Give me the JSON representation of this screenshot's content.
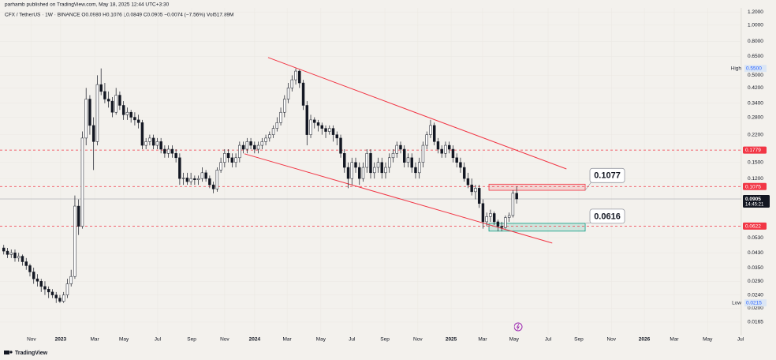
{
  "header": {
    "author_line": "parhamb published on TradingView.com, May 18, 2025 12:44 UTC+3:30",
    "symbol_line": "CFX / TetherUS · 1W · BINANCE  O0.0980  H0.1076  L0.0849  C0.0905  −0.0074 (−7.56%)  Vol517.89M"
  },
  "footer": {
    "brand": "TradingView"
  },
  "chart_data": {
    "type": "candlestick",
    "log_scale": true,
    "grid": true,
    "up_color": "#ffffff",
    "down_color": "#131722",
    "wick_color": "#131722",
    "xlim": [
      -1,
      197
    ],
    "ylim": [
      0.0137,
      1.27
    ],
    "xticks": [
      {
        "value": 7.4,
        "label": "Nov"
      },
      {
        "value": 15.2,
        "label": "2023"
      },
      {
        "value": 24.3,
        "label": "Mar"
      },
      {
        "value": 32.1,
        "label": "May"
      },
      {
        "value": 41.1,
        "label": "Jul"
      },
      {
        "value": 50.2,
        "label": "Sep"
      },
      {
        "value": 59,
        "label": "Nov"
      },
      {
        "value": 67,
        "label": "2024"
      },
      {
        "value": 75.7,
        "label": "Mar"
      },
      {
        "value": 84.7,
        "label": "May"
      },
      {
        "value": 93,
        "label": "Jul"
      },
      {
        "value": 101.8,
        "label": "Sep"
      },
      {
        "value": 110.6,
        "label": "Nov"
      },
      {
        "value": 119.5,
        "label": "2025"
      },
      {
        "value": 127.9,
        "label": "Mar"
      },
      {
        "value": 136.3,
        "label": "May"
      },
      {
        "value": 145.4,
        "label": "Jul"
      },
      {
        "value": 153.6,
        "label": "Sep"
      },
      {
        "value": 162.3,
        "label": "Nov"
      },
      {
        "value": 171.1,
        "label": "2026"
      },
      {
        "value": 179.1,
        "label": "Mar"
      },
      {
        "value": 188,
        "label": "May"
      },
      {
        "value": 196.8,
        "label": "Jul"
      }
    ],
    "yticks": [
      {
        "value": 1.2,
        "label": "1.2000"
      },
      {
        "value": 1.0,
        "label": "1.0000"
      },
      {
        "value": 0.8,
        "label": "0.8000"
      },
      {
        "value": 0.65,
        "label": "0.6500"
      },
      {
        "value": 0.5,
        "label": "0.5000"
      },
      {
        "value": 0.42,
        "label": "0.4200"
      },
      {
        "value": 0.34,
        "label": "0.3400"
      },
      {
        "value": 0.28,
        "label": "0.2800"
      },
      {
        "value": 0.22,
        "label": "0.2200"
      },
      {
        "value": 0.15,
        "label": "0.1500"
      },
      {
        "value": 0.12,
        "label": "0.1200"
      },
      {
        "value": 0.053,
        "label": "0.0530"
      },
      {
        "value": 0.043,
        "label": "0.0430"
      },
      {
        "value": 0.035,
        "label": "0.0350"
      },
      {
        "value": 0.029,
        "label": "0.0290"
      },
      {
        "value": 0.024,
        "label": "0.0240"
      },
      {
        "value": 0.02,
        "label": "0.0200"
      },
      {
        "value": 0.0165,
        "label": "0.0165"
      }
    ],
    "ohlc": [
      [
        0.046,
        0.048,
        0.042,
        0.044
      ],
      [
        0.044,
        0.046,
        0.04,
        0.042
      ],
      [
        0.042,
        0.045,
        0.04,
        0.043
      ],
      [
        0.043,
        0.045,
        0.038,
        0.04
      ],
      [
        0.04,
        0.043,
        0.038,
        0.041
      ],
      [
        0.041,
        0.042,
        0.036,
        0.038
      ],
      [
        0.038,
        0.04,
        0.034,
        0.036
      ],
      [
        0.036,
        0.037,
        0.031,
        0.033
      ],
      [
        0.033,
        0.035,
        0.028,
        0.03
      ],
      [
        0.03,
        0.032,
        0.027,
        0.029
      ],
      [
        0.029,
        0.03,
        0.025,
        0.027
      ],
      [
        0.027,
        0.029,
        0.024,
        0.026
      ],
      [
        0.026,
        0.027,
        0.023,
        0.025
      ],
      [
        0.025,
        0.026,
        0.023,
        0.024
      ],
      [
        0.024,
        0.025,
        0.0215,
        0.023
      ],
      [
        0.023,
        0.024,
        0.0215,
        0.022
      ],
      [
        0.022,
        0.025,
        0.0215,
        0.024
      ],
      [
        0.024,
        0.03,
        0.023,
        0.028
      ],
      [
        0.028,
        0.034,
        0.027,
        0.031
      ],
      [
        0.031,
        0.095,
        0.03,
        0.082
      ],
      [
        0.082,
        0.09,
        0.055,
        0.062
      ],
      [
        0.062,
        0.23,
        0.06,
        0.21
      ],
      [
        0.21,
        0.42,
        0.19,
        0.36
      ],
      [
        0.36,
        0.38,
        0.22,
        0.25
      ],
      [
        0.25,
        0.28,
        0.135,
        0.2
      ],
      [
        0.2,
        0.5,
        0.19,
        0.44
      ],
      [
        0.44,
        0.55,
        0.38,
        0.4
      ],
      [
        0.4,
        0.45,
        0.34,
        0.36
      ],
      [
        0.36,
        0.4,
        0.32,
        0.35
      ],
      [
        0.35,
        0.37,
        0.28,
        0.3
      ],
      [
        0.3,
        0.42,
        0.29,
        0.38
      ],
      [
        0.38,
        0.4,
        0.31,
        0.33
      ],
      [
        0.33,
        0.35,
        0.27,
        0.29
      ],
      [
        0.29,
        0.32,
        0.27,
        0.3
      ],
      [
        0.3,
        0.31,
        0.26,
        0.28
      ],
      [
        0.28,
        0.3,
        0.25,
        0.27
      ],
      [
        0.27,
        0.29,
        0.24,
        0.26
      ],
      [
        0.26,
        0.27,
        0.18,
        0.19
      ],
      [
        0.19,
        0.21,
        0.18,
        0.2
      ],
      [
        0.2,
        0.22,
        0.19,
        0.21
      ],
      [
        0.21,
        0.22,
        0.18,
        0.19
      ],
      [
        0.19,
        0.21,
        0.18,
        0.2
      ],
      [
        0.2,
        0.21,
        0.17,
        0.18
      ],
      [
        0.18,
        0.19,
        0.16,
        0.17
      ],
      [
        0.17,
        0.19,
        0.16,
        0.18
      ],
      [
        0.18,
        0.19,
        0.16,
        0.17
      ],
      [
        0.17,
        0.18,
        0.15,
        0.16
      ],
      [
        0.16,
        0.17,
        0.11,
        0.12
      ],
      [
        0.12,
        0.13,
        0.11,
        0.121
      ],
      [
        0.121,
        0.13,
        0.11,
        0.115
      ],
      [
        0.115,
        0.13,
        0.11,
        0.12
      ],
      [
        0.12,
        0.125,
        0.11,
        0.118
      ],
      [
        0.118,
        0.125,
        0.11,
        0.12
      ],
      [
        0.12,
        0.14,
        0.115,
        0.13
      ],
      [
        0.13,
        0.135,
        0.115,
        0.12
      ],
      [
        0.12,
        0.125,
        0.105,
        0.11
      ],
      [
        0.11,
        0.115,
        0.098,
        0.104
      ],
      [
        0.104,
        0.14,
        0.1,
        0.135
      ],
      [
        0.135,
        0.16,
        0.13,
        0.15
      ],
      [
        0.15,
        0.18,
        0.14,
        0.17
      ],
      [
        0.17,
        0.18,
        0.15,
        0.16
      ],
      [
        0.16,
        0.17,
        0.14,
        0.15
      ],
      [
        0.15,
        0.17,
        0.14,
        0.16
      ],
      [
        0.16,
        0.2,
        0.15,
        0.19
      ],
      [
        0.19,
        0.2,
        0.17,
        0.18
      ],
      [
        0.18,
        0.21,
        0.17,
        0.2
      ],
      [
        0.2,
        0.21,
        0.18,
        0.19
      ],
      [
        0.19,
        0.2,
        0.17,
        0.18
      ],
      [
        0.18,
        0.2,
        0.17,
        0.19
      ],
      [
        0.19,
        0.21,
        0.18,
        0.2
      ],
      [
        0.2,
        0.22,
        0.19,
        0.21
      ],
      [
        0.21,
        0.23,
        0.2,
        0.22
      ],
      [
        0.22,
        0.25,
        0.21,
        0.24
      ],
      [
        0.24,
        0.28,
        0.23,
        0.26
      ],
      [
        0.26,
        0.32,
        0.25,
        0.3
      ],
      [
        0.3,
        0.38,
        0.28,
        0.36
      ],
      [
        0.36,
        0.45,
        0.34,
        0.42
      ],
      [
        0.42,
        0.5,
        0.4,
        0.47
      ],
      [
        0.47,
        0.55,
        0.44,
        0.53
      ],
      [
        0.53,
        0.54,
        0.42,
        0.45
      ],
      [
        0.45,
        0.47,
        0.31,
        0.33
      ],
      [
        0.33,
        0.35,
        0.19,
        0.22
      ],
      [
        0.22,
        0.29,
        0.21,
        0.27
      ],
      [
        0.27,
        0.28,
        0.24,
        0.26
      ],
      [
        0.26,
        0.27,
        0.23,
        0.25
      ],
      [
        0.25,
        0.26,
        0.22,
        0.24
      ],
      [
        0.24,
        0.25,
        0.21,
        0.23
      ],
      [
        0.23,
        0.25,
        0.22,
        0.24
      ],
      [
        0.24,
        0.25,
        0.2,
        0.22
      ],
      [
        0.22,
        0.23,
        0.19,
        0.21
      ],
      [
        0.21,
        0.22,
        0.16,
        0.17
      ],
      [
        0.17,
        0.18,
        0.13,
        0.14
      ],
      [
        0.14,
        0.15,
        0.105,
        0.12
      ],
      [
        0.12,
        0.16,
        0.11,
        0.15
      ],
      [
        0.15,
        0.16,
        0.13,
        0.14
      ],
      [
        0.14,
        0.15,
        0.11,
        0.12
      ],
      [
        0.12,
        0.15,
        0.115,
        0.14
      ],
      [
        0.14,
        0.18,
        0.13,
        0.17
      ],
      [
        0.17,
        0.18,
        0.12,
        0.13
      ],
      [
        0.13,
        0.15,
        0.12,
        0.14
      ],
      [
        0.14,
        0.16,
        0.13,
        0.15
      ],
      [
        0.15,
        0.16,
        0.12,
        0.13
      ],
      [
        0.13,
        0.15,
        0.12,
        0.14
      ],
      [
        0.14,
        0.17,
        0.13,
        0.16
      ],
      [
        0.16,
        0.18,
        0.15,
        0.17
      ],
      [
        0.17,
        0.2,
        0.16,
        0.19
      ],
      [
        0.19,
        0.2,
        0.17,
        0.18
      ],
      [
        0.18,
        0.19,
        0.14,
        0.15
      ],
      [
        0.15,
        0.17,
        0.14,
        0.16
      ],
      [
        0.16,
        0.17,
        0.13,
        0.14
      ],
      [
        0.14,
        0.15,
        0.12,
        0.13
      ],
      [
        0.13,
        0.16,
        0.12,
        0.15
      ],
      [
        0.15,
        0.2,
        0.14,
        0.19
      ],
      [
        0.19,
        0.23,
        0.18,
        0.22
      ],
      [
        0.22,
        0.27,
        0.21,
        0.25
      ],
      [
        0.25,
        0.26,
        0.19,
        0.2
      ],
      [
        0.2,
        0.21,
        0.17,
        0.18
      ],
      [
        0.18,
        0.19,
        0.16,
        0.17
      ],
      [
        0.17,
        0.2,
        0.16,
        0.19
      ],
      [
        0.19,
        0.2,
        0.17,
        0.18
      ],
      [
        0.18,
        0.19,
        0.15,
        0.16
      ],
      [
        0.16,
        0.17,
        0.14,
        0.15
      ],
      [
        0.15,
        0.16,
        0.13,
        0.14
      ],
      [
        0.14,
        0.15,
        0.115,
        0.12
      ],
      [
        0.12,
        0.13,
        0.105,
        0.11
      ],
      [
        0.11,
        0.12,
        0.095,
        0.1
      ],
      [
        0.1,
        0.11,
        0.09,
        0.105
      ],
      [
        0.105,
        0.11,
        0.08,
        0.085
      ],
      [
        0.085,
        0.09,
        0.06,
        0.066
      ],
      [
        0.066,
        0.075,
        0.062,
        0.071
      ],
      [
        0.071,
        0.078,
        0.066,
        0.074
      ],
      [
        0.074,
        0.076,
        0.063,
        0.066
      ],
      [
        0.066,
        0.068,
        0.058,
        0.062
      ],
      [
        0.062,
        0.066,
        0.058,
        0.061
      ],
      [
        0.061,
        0.072,
        0.06,
        0.07
      ],
      [
        0.07,
        0.075,
        0.066,
        0.072
      ],
      [
        0.072,
        0.102,
        0.07,
        0.098
      ],
      [
        0.098,
        0.1076,
        0.0849,
        0.0905
      ]
    ],
    "levels": [
      {
        "value": 0.1779,
        "color": "#f23645"
      },
      {
        "value": 0.1075,
        "color": "#f23645"
      },
      {
        "value": 0.0622,
        "color": "#f23645"
      }
    ],
    "last_price": {
      "value": 0.0905,
      "countdown": "14:45:21"
    },
    "high": {
      "label": "High",
      "price": {
        "value": 0.55,
        "label": "0.5500"
      }
    },
    "low": {
      "label": "Low",
      "price": 0.0215
    },
    "trendlines": [
      {
        "x": [
          70.6,
          150.3
        ],
        "y": [
          0.64,
          0.137
        ],
        "color": "#f23645"
      },
      {
        "x": [
          64.3,
          146.5
        ],
        "y": [
          0.169,
          0.0492
        ],
        "color": "#f23645"
      }
    ],
    "zones": [
      {
        "x": [
          129.6,
          155.3
        ],
        "y": [
          0.102,
          0.111
        ],
        "color": "#f23645",
        "text": "0.1077"
      },
      {
        "x": [
          129.6,
          155.3
        ],
        "y": [
          0.058,
          0.0646
        ],
        "color": "#089981",
        "text": "0.0616"
      }
    ]
  }
}
